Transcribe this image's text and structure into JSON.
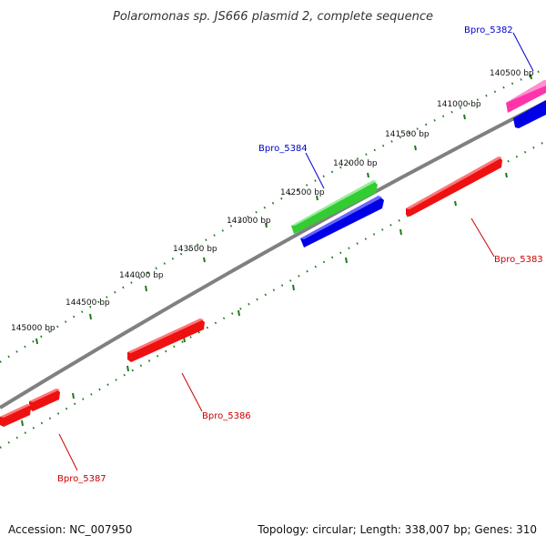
{
  "title": "Polaromonas sp. JS666 plasmid 2, complete sequence",
  "footer": {
    "accession": "Accession: NC_007950",
    "summary": "Topology: circular; Length: 338,007 bp; Genes: 310"
  },
  "ticks": [
    "140500 bp",
    "141000 bp",
    "141500 bp",
    "142000 bp",
    "142500 bp",
    "143000 bp",
    "143500 bp",
    "144000 bp",
    "144500 bp",
    "145000 bp"
  ],
  "genes": [
    {
      "name": "Bpro_5382",
      "color": "#0000cc"
    },
    {
      "name": "Bpro_5384",
      "color": "#0000cc"
    },
    {
      "name": "Bpro_5383",
      "color": "#cc0000"
    },
    {
      "name": "Bpro_5386",
      "color": "#cc0000"
    },
    {
      "name": "Bpro_5387",
      "color": "#cc0000"
    }
  ],
  "colors": {
    "backbone": "#808080",
    "tick": "#1f7a1f",
    "forward_strand": "#e01010",
    "reverse_strand_green": "#33cc33",
    "reverse_strand_blue": "#0000e6",
    "pink_gene": "#ff33aa"
  }
}
